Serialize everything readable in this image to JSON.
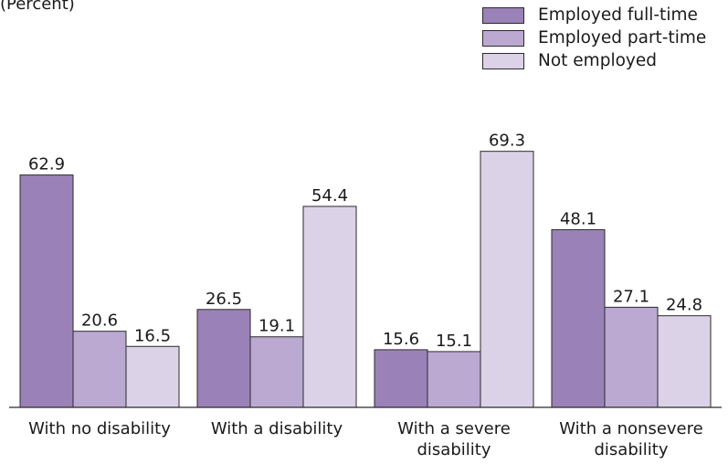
{
  "header": {
    "note": "(Percent)"
  },
  "chart_data": {
    "type": "bar",
    "title": "",
    "xlabel": "",
    "ylabel": "",
    "ylim": [
      0,
      75
    ],
    "grid": false,
    "legend_position": "top-right",
    "categories": [
      [
        "With no disability"
      ],
      [
        "With a disability"
      ],
      [
        "With a severe",
        "disability"
      ],
      [
        "With a nonsevere",
        "disability"
      ]
    ],
    "series": [
      {
        "name": "Employed full-time",
        "color": "#9a82b8",
        "values": [
          62.9,
          26.5,
          15.6,
          48.1
        ]
      },
      {
        "name": "Employed part-time",
        "color": "#bba9d2",
        "values": [
          20.6,
          19.1,
          15.1,
          27.1
        ]
      },
      {
        "name": "Not employed",
        "color": "#dcd2e8",
        "values": [
          16.5,
          54.4,
          69.3,
          24.8
        ]
      }
    ]
  }
}
